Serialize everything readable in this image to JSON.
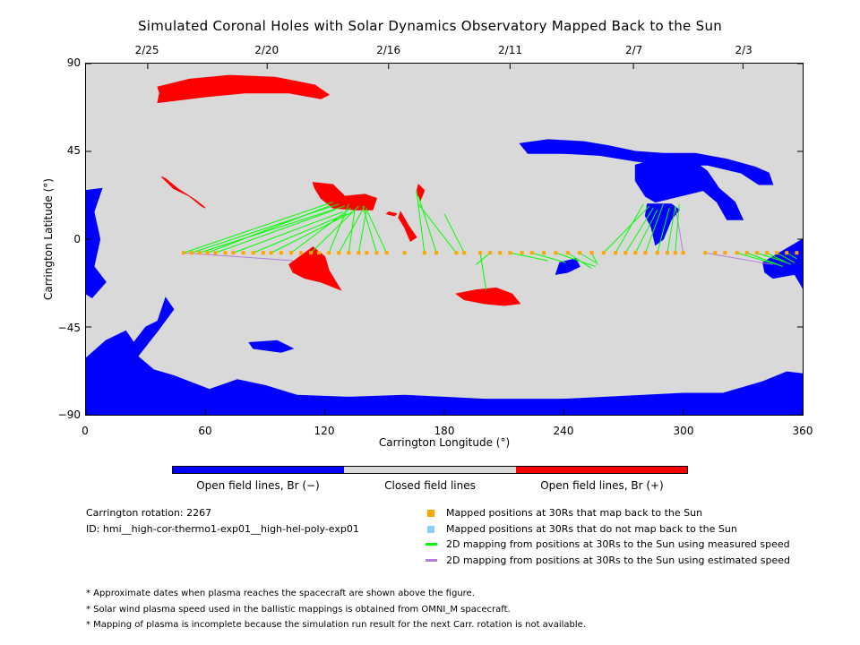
{
  "chart_data": {
    "type": "scatter",
    "title": "Simulated Coronal Holes with Solar Dynamics Observatory Mapped Back to the Sun",
    "xlabel": "Carrington Longitude (°)",
    "ylabel": "Carrington Latitude (°)",
    "xlim": [
      0,
      360
    ],
    "ylim": [
      -90,
      90
    ],
    "x_ticks": [
      "0",
      "60",
      "120",
      "180",
      "240",
      "300",
      "360"
    ],
    "y_ticks": [
      "90",
      "45",
      "0",
      "−45",
      "−90"
    ],
    "top_axis": {
      "label_dates": [
        "2/25",
        "2/20",
        "2/16",
        "2/11",
        "2/7",
        "2/3"
      ],
      "tick_longitudes": [
        31,
        91,
        152,
        213,
        275,
        330
      ]
    },
    "background_color": "#d9d9d9",
    "colors": {
      "open_negative": "#0000ff",
      "closed": "#d9d9d9",
      "open_positive": "#ff0000",
      "mapped_back": "#ffa500",
      "not_mapped": "#87cefa",
      "measured_speed": "#00ff00",
      "estimated_speed": "#b57edc"
    },
    "mapped_positions_30Rs": {
      "latitude": -7,
      "longitudes": [
        49,
        53,
        57,
        61,
        65,
        70,
        74,
        79,
        84,
        89,
        93,
        98,
        103,
        108,
        113,
        117,
        122,
        127,
        132,
        137,
        141,
        146,
        151,
        160,
        170,
        176,
        186,
        190,
        198,
        203,
        208,
        213,
        219,
        224,
        230,
        236,
        242,
        248,
        254,
        260,
        266,
        271,
        276,
        281,
        287,
        292,
        296,
        300,
        311,
        316,
        321,
        327,
        332,
        337,
        342,
        347,
        352,
        357
      ]
    },
    "mapping_lines_measured": [
      {
        "from": [
          49,
          -7
        ],
        "to": [
          124,
          19
        ]
      },
      {
        "from": [
          53,
          -7
        ],
        "to": [
          127,
          18
        ]
      },
      {
        "from": [
          57,
          -7
        ],
        "to": [
          130,
          17
        ]
      },
      {
        "from": [
          61,
          -7
        ],
        "to": [
          122,
          17
        ]
      },
      {
        "from": [
          65,
          -7
        ],
        "to": [
          125,
          15
        ]
      },
      {
        "from": [
          74,
          -7
        ],
        "to": [
          129,
          14
        ]
      },
      {
        "from": [
          84,
          -7
        ],
        "to": [
          131,
          13
        ]
      },
      {
        "from": [
          93,
          -7
        ],
        "to": [
          134,
          14
        ]
      },
      {
        "from": [
          103,
          -7
        ],
        "to": [
          133,
          16
        ]
      },
      {
        "from": [
          113,
          -7
        ],
        "to": [
          137,
          17
        ]
      },
      {
        "from": [
          122,
          -7
        ],
        "to": [
          132,
          18
        ]
      },
      {
        "from": [
          127,
          -7
        ],
        "to": [
          140,
          17
        ]
      },
      {
        "from": [
          132,
          -7
        ],
        "to": [
          135,
          15
        ]
      },
      {
        "from": [
          137,
          -7
        ],
        "to": [
          141,
          16
        ]
      },
      {
        "from": [
          146,
          -7
        ],
        "to": [
          139,
          17
        ]
      },
      {
        "from": [
          151,
          -7
        ],
        "to": [
          141,
          15
        ]
      },
      {
        "from": [
          170,
          -7
        ],
        "to": [
          166,
          25
        ]
      },
      {
        "from": [
          176,
          -7
        ],
        "to": [
          167,
          22
        ]
      },
      {
        "from": [
          186,
          -7
        ],
        "to": [
          167,
          18
        ]
      },
      {
        "from": [
          190,
          -7
        ],
        "to": [
          180,
          13
        ]
      },
      {
        "from": [
          198,
          -7
        ],
        "to": [
          201,
          -26
        ]
      },
      {
        "from": [
          203,
          -7
        ],
        "to": [
          196,
          -13
        ]
      },
      {
        "from": [
          213,
          -7
        ],
        "to": [
          232,
          -11
        ]
      },
      {
        "from": [
          224,
          -7
        ],
        "to": [
          241,
          -12
        ]
      },
      {
        "from": [
          236,
          -7
        ],
        "to": [
          256,
          -14
        ]
      },
      {
        "from": [
          242,
          -7
        ],
        "to": [
          254,
          -15
        ]
      },
      {
        "from": [
          248,
          -7
        ],
        "to": [
          256,
          -12
        ]
      },
      {
        "from": [
          254,
          -7
        ],
        "to": [
          257,
          -13
        ]
      },
      {
        "from": [
          260,
          -7
        ],
        "to": [
          283,
          17
        ]
      },
      {
        "from": [
          266,
          -7
        ],
        "to": [
          280,
          18
        ]
      },
      {
        "from": [
          271,
          -7
        ],
        "to": [
          285,
          16
        ]
      },
      {
        "from": [
          276,
          -7
        ],
        "to": [
          287,
          15
        ]
      },
      {
        "from": [
          281,
          -7
        ],
        "to": [
          290,
          18
        ]
      },
      {
        "from": [
          287,
          -7
        ],
        "to": [
          293,
          16
        ]
      },
      {
        "from": [
          292,
          -7
        ],
        "to": [
          296,
          17
        ]
      },
      {
        "from": [
          296,
          -7
        ],
        "to": [
          298,
          18
        ]
      },
      {
        "from": [
          327,
          -7
        ],
        "to": [
          347,
          -13
        ]
      },
      {
        "from": [
          332,
          -7
        ],
        "to": [
          350,
          -14
        ]
      },
      {
        "from": [
          337,
          -7
        ],
        "to": [
          352,
          -12
        ]
      },
      {
        "from": [
          342,
          -7
        ],
        "to": [
          354,
          -13
        ]
      },
      {
        "from": [
          347,
          -7
        ],
        "to": [
          356,
          -12
        ]
      },
      {
        "from": [
          352,
          -7
        ],
        "to": [
          357,
          -10
        ]
      }
    ],
    "mapping_lines_estimated": [
      {
        "from": [
          49,
          -7
        ],
        "to": [
          104,
          -11
        ]
      },
      {
        "from": [
          300,
          -7
        ],
        "to": [
          296,
          17
        ]
      },
      {
        "from": [
          311,
          -7
        ],
        "to": [
          345,
          -13
        ]
      }
    ],
    "coronal_holes": [
      {
        "polarity": "positive",
        "points": [
          [
            36,
            78
          ],
          [
            52,
            82
          ],
          [
            72,
            84
          ],
          [
            95,
            83
          ],
          [
            115,
            79
          ],
          [
            122,
            74
          ],
          [
            118,
            72
          ],
          [
            102,
            75
          ],
          [
            80,
            75
          ],
          [
            60,
            73
          ],
          [
            44,
            71
          ],
          [
            36,
            70
          ],
          [
            37,
            75
          ]
        ]
      },
      {
        "polarity": "positive",
        "points": [
          [
            38,
            32
          ],
          [
            44,
            26
          ],
          [
            52,
            22
          ],
          [
            58,
            17
          ],
          [
            60,
            16
          ],
          [
            55,
            20
          ],
          [
            46,
            26
          ],
          [
            40,
            31
          ]
        ]
      },
      {
        "polarity": "positive",
        "points": [
          [
            114,
            29
          ],
          [
            124,
            28
          ],
          [
            130,
            22
          ],
          [
            140,
            23
          ],
          [
            146,
            21
          ],
          [
            144,
            15
          ],
          [
            136,
            15
          ],
          [
            124,
            16
          ],
          [
            118,
            21
          ],
          [
            115,
            26
          ]
        ]
      },
      {
        "polarity": "positive",
        "points": [
          [
            158,
            14
          ],
          [
            162,
            7
          ],
          [
            166,
            1
          ],
          [
            163,
            -1
          ],
          [
            160,
            6
          ],
          [
            157,
            11
          ]
        ]
      },
      {
        "polarity": "positive",
        "points": [
          [
            167,
            28
          ],
          [
            170,
            25
          ],
          [
            168,
            20
          ],
          [
            166,
            24
          ]
        ]
      },
      {
        "polarity": "positive",
        "points": [
          [
            102,
            -13
          ],
          [
            114,
            -4
          ],
          [
            120,
            -9
          ],
          [
            122,
            -16
          ],
          [
            128,
            -26
          ],
          [
            118,
            -22
          ],
          [
            110,
            -20
          ],
          [
            104,
            -17
          ]
        ]
      },
      {
        "polarity": "positive",
        "points": [
          [
            186,
            -28
          ],
          [
            196,
            -26
          ],
          [
            206,
            -25
          ],
          [
            214,
            -28
          ],
          [
            218,
            -33
          ],
          [
            210,
            -34
          ],
          [
            200,
            -33
          ],
          [
            190,
            -31
          ]
        ]
      },
      {
        "polarity": "positive",
        "points": [
          [
            152,
            14
          ],
          [
            156,
            13
          ],
          [
            155,
            12
          ],
          [
            151,
            13
          ]
        ]
      },
      {
        "polarity": "negative",
        "points": [
          [
            218,
            49
          ],
          [
            232,
            51
          ],
          [
            250,
            50
          ],
          [
            262,
            48
          ],
          [
            276,
            45
          ],
          [
            290,
            44
          ],
          [
            306,
            44
          ],
          [
            322,
            41
          ],
          [
            336,
            37
          ],
          [
            343,
            34
          ],
          [
            345,
            28
          ],
          [
            338,
            28
          ],
          [
            329,
            34
          ],
          [
            312,
            38
          ],
          [
            292,
            38
          ],
          [
            276,
            40
          ],
          [
            258,
            43
          ],
          [
            240,
            44
          ],
          [
            222,
            44
          ]
        ]
      },
      {
        "polarity": "negative",
        "points": [
          [
            276,
            38
          ],
          [
            290,
            42
          ],
          [
            304,
            41
          ],
          [
            312,
            35
          ],
          [
            318,
            26
          ],
          [
            326,
            19
          ],
          [
            330,
            10
          ],
          [
            322,
            10
          ],
          [
            317,
            19
          ],
          [
            310,
            25
          ],
          [
            298,
            22
          ],
          [
            286,
            19
          ],
          [
            281,
            22
          ],
          [
            276,
            30
          ]
        ]
      },
      {
        "polarity": "negative",
        "points": [
          [
            282,
            18
          ],
          [
            294,
            18
          ],
          [
            298,
            15
          ],
          [
            294,
            10
          ],
          [
            290,
            0
          ],
          [
            286,
            -3
          ],
          [
            284,
            6
          ],
          [
            281,
            12
          ]
        ]
      },
      {
        "polarity": "negative",
        "points": [
          [
            238,
            -12
          ],
          [
            246,
            -10
          ],
          [
            248,
            -14
          ],
          [
            242,
            -17
          ],
          [
            236,
            -18
          ]
        ]
      },
      {
        "polarity": "negative",
        "points": [
          [
            0,
            25
          ],
          [
            8,
            26
          ],
          [
            4,
            14
          ],
          [
            7,
            0
          ],
          [
            4,
            -14
          ],
          [
            10,
            -22
          ],
          [
            3,
            -30
          ],
          [
            0,
            -28
          ]
        ]
      },
      {
        "polarity": "negative",
        "points": [
          [
            340,
            -12
          ],
          [
            350,
            -6
          ],
          [
            360,
            0
          ],
          [
            360,
            -25
          ],
          [
            356,
            -18
          ],
          [
            345,
            -20
          ],
          [
            341,
            -17
          ]
        ]
      },
      {
        "polarity": "negative",
        "points": [
          [
            0,
            -61
          ],
          [
            10,
            -52
          ],
          [
            20,
            -47
          ],
          [
            24,
            -53
          ],
          [
            30,
            -45
          ],
          [
            36,
            -42
          ],
          [
            40,
            -30
          ],
          [
            44,
            -36
          ],
          [
            36,
            -47
          ],
          [
            26,
            -60
          ],
          [
            34,
            -67
          ],
          [
            44,
            -70
          ],
          [
            62,
            -77
          ],
          [
            76,
            -72
          ],
          [
            90,
            -75
          ],
          [
            106,
            -80
          ],
          [
            132,
            -81
          ],
          [
            160,
            -80
          ],
          [
            200,
            -82
          ],
          [
            240,
            -82
          ],
          [
            280,
            -80
          ],
          [
            300,
            -79
          ],
          [
            320,
            -79
          ],
          [
            340,
            -73
          ],
          [
            352,
            -68
          ],
          [
            360,
            -69
          ],
          [
            360,
            -90
          ],
          [
            0,
            -90
          ]
        ]
      },
      {
        "polarity": "negative",
        "points": [
          [
            84,
            -56
          ],
          [
            98,
            -58
          ],
          [
            104,
            -56
          ],
          [
            96,
            -52
          ],
          [
            82,
            -53
          ]
        ]
      }
    ]
  },
  "colorbar": {
    "labels": [
      "Open field lines, Br (−)",
      "Closed field lines",
      "Open field lines, Br (+)"
    ]
  },
  "info": {
    "rotation": "Carrington rotation: 2267",
    "id": "ID: hmi__high-cor-thermo1-exp01__high-hel-poly-exp01"
  },
  "legend": [
    "Mapped positions at 30Rs that map back to the Sun",
    "Mapped positions at 30Rs that do not map back to the Sun",
    "2D mapping from positions at 30Rs to the Sun using measured speed",
    "2D mapping from positions at 30Rs to the Sun using estimated speed"
  ],
  "notes": [
    "* Approximate dates when plasma reaches the spacecraft are shown above the figure.",
    "* Solar wind plasma speed used in the ballistic mappings is obtained from OMNI_M spacecraft.",
    "* Mapping of plasma is incomplete because the simulation run result for the next Carr. rotation is not available."
  ]
}
